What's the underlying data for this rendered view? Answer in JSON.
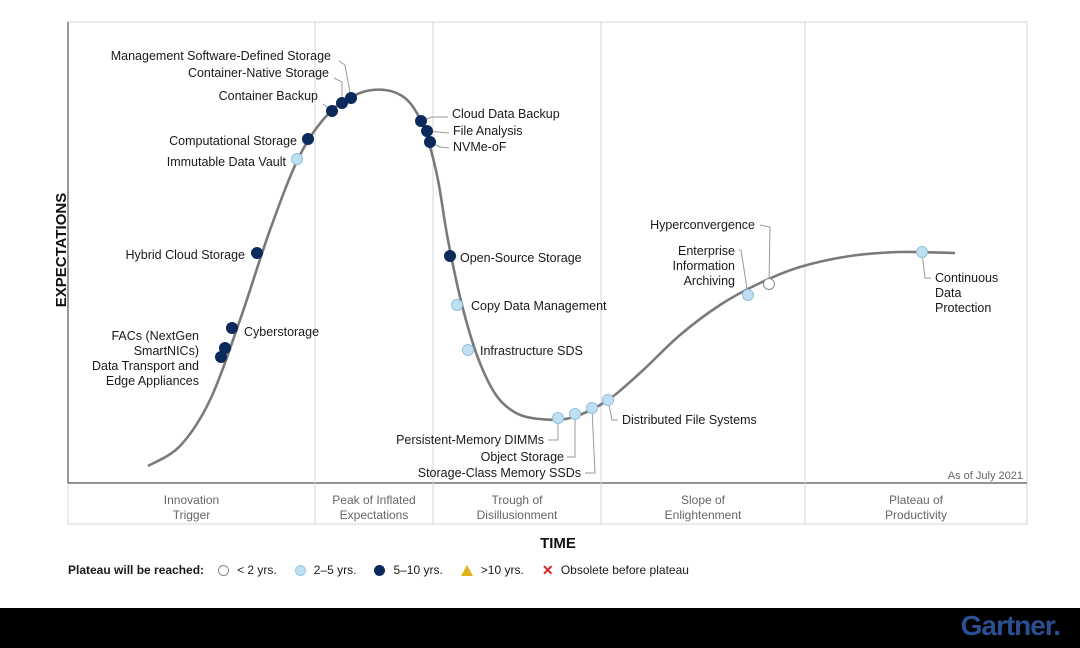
{
  "chart_data": {
    "type": "line",
    "y_axis_label": "EXPECTATIONS",
    "x_axis_label": "TIME",
    "as_of": "As of July 2021",
    "phases": [
      {
        "lines": [
          "Innovation",
          "Trigger"
        ]
      },
      {
        "lines": [
          "Peak of Inflated",
          "Expectations"
        ]
      },
      {
        "lines": [
          "Trough of",
          "Disillusionment"
        ]
      },
      {
        "lines": [
          "Slope of",
          "Enlightenment"
        ]
      },
      {
        "lines": [
          "Plateau of",
          "Productivity"
        ]
      }
    ],
    "plateau_legend": {
      "title": "Plateau will be reached:",
      "items": [
        {
          "key": "lt2",
          "label": "< 2 yrs."
        },
        {
          "key": "2to5",
          "label": "2–5 yrs."
        },
        {
          "key": "5to10",
          "label": "5–10 yrs."
        },
        {
          "key": "gt10",
          "label": ">10 yrs."
        },
        {
          "key": "obsolete",
          "label": "Obsolete before plateau"
        }
      ]
    },
    "colors": {
      "lt2": "#ffffff",
      "2to5": "#bfe0f2",
      "5to10": "#0b2a5b",
      "gt10": "#e0b21b",
      "obsolete": "#dd2222",
      "curve": "#7a7a7a"
    },
    "technologies": [
      {
        "name": "Data Transport and Edge Appliances",
        "label_lines": [
          "Data Transport and",
          "Edge Appliances"
        ],
        "plateau": "5to10"
      },
      {
        "name": "FACs (NextGen SmartNICs)",
        "label_lines": [
          "FACs (NextGen",
          "SmartNICs)"
        ],
        "plateau": "5to10"
      },
      {
        "name": "Cyberstorage",
        "label_lines": [
          "Cyberstorage"
        ],
        "plateau": "5to10"
      },
      {
        "name": "Hybrid Cloud Storage",
        "label_lines": [
          "Hybrid Cloud Storage"
        ],
        "plateau": "5to10"
      },
      {
        "name": "Immutable Data Vault",
        "label_lines": [
          "Immutable Data Vault"
        ],
        "plateau": "2to5"
      },
      {
        "name": "Computational Storage",
        "label_lines": [
          "Computational Storage"
        ],
        "plateau": "5to10"
      },
      {
        "name": "Container Backup",
        "label_lines": [
          "Container Backup"
        ],
        "plateau": "5to10"
      },
      {
        "name": "Container-Native Storage",
        "label_lines": [
          "Container-Native Storage"
        ],
        "plateau": "5to10"
      },
      {
        "name": "Management Software-Defined Storage",
        "label_lines": [
          "Management Software-Defined Storage"
        ],
        "plateau": "5to10"
      },
      {
        "name": "Cloud Data Backup",
        "label_lines": [
          "Cloud Data Backup"
        ],
        "plateau": "5to10"
      },
      {
        "name": "File Analysis",
        "label_lines": [
          "File Analysis"
        ],
        "plateau": "5to10"
      },
      {
        "name": "NVMe-oF",
        "label_lines": [
          "NVMe-oF"
        ],
        "plateau": "5to10"
      },
      {
        "name": "Open-Source Storage",
        "label_lines": [
          "Open-Source Storage"
        ],
        "plateau": "5to10"
      },
      {
        "name": "Copy Data Management",
        "label_lines": [
          "Copy Data Management"
        ],
        "plateau": "2to5"
      },
      {
        "name": "Infrastructure SDS",
        "label_lines": [
          "Infrastructure SDS"
        ],
        "plateau": "2to5"
      },
      {
        "name": "Persistent-Memory DIMMs",
        "label_lines": [
          "Persistent-Memory DIMMs"
        ],
        "plateau": "2to5"
      },
      {
        "name": "Object Storage",
        "label_lines": [
          "Object Storage"
        ],
        "plateau": "2to5"
      },
      {
        "name": "Storage-Class Memory SSDs",
        "label_lines": [
          "Storage-Class Memory SSDs"
        ],
        "plateau": "2to5"
      },
      {
        "name": "Distributed File Systems",
        "label_lines": [
          "Distributed File Systems"
        ],
        "plateau": "2to5"
      },
      {
        "name": "Enterprise Information Archiving",
        "label_lines": [
          "Enterprise",
          "Information",
          "Archiving"
        ],
        "plateau": "2to5"
      },
      {
        "name": "Hyperconvergence",
        "label_lines": [
          "Hyperconvergence"
        ],
        "plateau": "lt2"
      },
      {
        "name": "Continuous Data Protection",
        "label_lines": [
          "Continuous",
          "Data",
          "Protection"
        ],
        "plateau": "2to5"
      }
    ]
  },
  "brand": {
    "logo": "Gartner."
  }
}
